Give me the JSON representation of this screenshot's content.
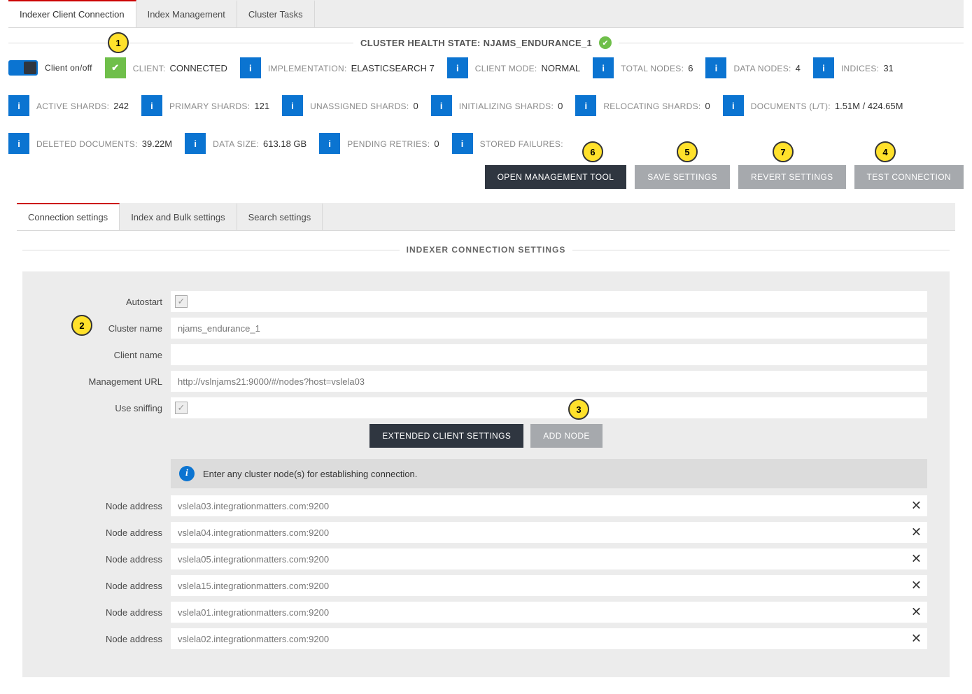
{
  "top_tabs": {
    "items": [
      {
        "label": "Indexer Client Connection",
        "active": true
      },
      {
        "label": "Index Management",
        "active": false
      },
      {
        "label": "Cluster Tasks",
        "active": false
      }
    ]
  },
  "health_header": {
    "label": "CLUSTER HEALTH STATE:",
    "value": "NJAMS_ENDURANCE_1"
  },
  "client_toggle_label": "Client on/off",
  "stats": [
    {
      "icon": "check",
      "icon_color": "green",
      "label": "CLIENT:",
      "value": "CONNECTED"
    },
    {
      "icon": "i",
      "icon_color": "blue",
      "label": "IMPLEMENTATION:",
      "value": "ELASTICSEARCH 7"
    },
    {
      "icon": "i",
      "icon_color": "blue",
      "label": "CLIENT MODE:",
      "value": "NORMAL"
    },
    {
      "icon": "i",
      "icon_color": "blue",
      "label": "TOTAL NODES:",
      "value": "6"
    },
    {
      "icon": "i",
      "icon_color": "blue",
      "label": "DATA NODES:",
      "value": "4"
    },
    {
      "icon": "i",
      "icon_color": "blue",
      "label": "INDICES:",
      "value": "31"
    },
    {
      "icon": "i",
      "icon_color": "blue",
      "label": "ACTIVE SHARDS:",
      "value": "242"
    },
    {
      "icon": "i",
      "icon_color": "blue",
      "label": "PRIMARY SHARDS:",
      "value": "121"
    },
    {
      "icon": "i",
      "icon_color": "blue",
      "label": "UNASSIGNED SHARDS:",
      "value": "0"
    },
    {
      "icon": "i",
      "icon_color": "blue",
      "label": "INITIALIZING SHARDS:",
      "value": "0"
    },
    {
      "icon": "i",
      "icon_color": "blue",
      "label": "RELOCATING SHARDS:",
      "value": "0"
    },
    {
      "icon": "i",
      "icon_color": "blue",
      "label": "DOCUMENTS (L/T):",
      "value": "1.51M / 424.65M"
    },
    {
      "icon": "i",
      "icon_color": "blue",
      "label": "DELETED DOCUMENTS:",
      "value": "39.22M"
    },
    {
      "icon": "i",
      "icon_color": "blue",
      "label": "DATA SIZE:",
      "value": "613.18 GB"
    },
    {
      "icon": "i",
      "icon_color": "blue",
      "label": "PENDING RETRIES:",
      "value": "0"
    },
    {
      "icon": "i",
      "icon_color": "blue",
      "label": "STORED FAILURES:",
      "value": ""
    }
  ],
  "actions": {
    "open_management": "OPEN MANAGEMENT TOOL",
    "save_settings": "SAVE SETTINGS",
    "revert_settings": "REVERT SETTINGS",
    "test_connection": "TEST CONNECTION"
  },
  "sub_tabs": {
    "items": [
      {
        "label": "Connection settings",
        "active": true
      },
      {
        "label": "Index and Bulk settings",
        "active": false
      },
      {
        "label": "Search settings",
        "active": false
      }
    ]
  },
  "section_title": "INDEXER CONNECTION SETTINGS",
  "form": {
    "autostart_label": "Autostart",
    "cluster_name_label": "Cluster name",
    "cluster_name_value": "njams_endurance_1",
    "client_name_label": "Client name",
    "client_name_value": "",
    "management_url_label": "Management URL",
    "management_url_value": "http://vslnjams21:9000/#/nodes?host=vslela03",
    "use_sniffing_label": "Use sniffing",
    "extended_btn": "EXTENDED CLIENT SETTINGS",
    "add_node_btn": "ADD NODE",
    "info_msg": "Enter any cluster node(s) for establishing connection.",
    "node_label": "Node address",
    "nodes": [
      "vslela03.integrationmatters.com:9200",
      "vslela04.integrationmatters.com:9200",
      "vslela05.integrationmatters.com:9200",
      "vslela15.integrationmatters.com:9200",
      "vslela01.integrationmatters.com:9200",
      "vslela02.integrationmatters.com:9200"
    ]
  },
  "annotations": {
    "a1": "1",
    "a2": "2",
    "a3": "3",
    "a4": "4",
    "a5": "5",
    "a6": "6",
    "a7": "7"
  },
  "colors": {
    "brand_red": "#cc0000",
    "info_blue": "#0b74d1",
    "ok_green": "#6fbf4a",
    "dark": "#2f3640",
    "panel_bg": "#ececec",
    "tab_bg": "#ededed"
  }
}
